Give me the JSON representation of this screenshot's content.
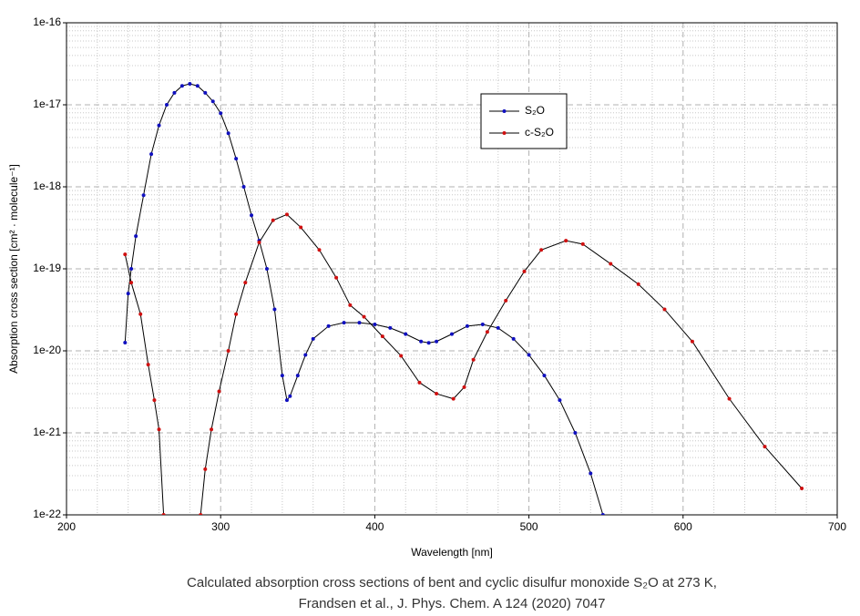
{
  "chart_data": {
    "type": "line",
    "title": "Calculated absorption cross sections of bent and cyclic disulfur monoxide S₂O at 273 K,",
    "subtitle": "Frandsen et al., J. Phys. Chem. A 124 (2020) 7047",
    "x_label": "Wavelength [nm]",
    "y_label": "Absorption cross section [cm² · molecule⁻¹]",
    "xlim": [
      200,
      700
    ],
    "xticks": [
      200,
      300,
      400,
      500,
      600,
      700
    ],
    "ylim": [
      1e-22,
      1e-16
    ],
    "yticks": [
      {
        "value": 1e-22,
        "label": "1e-22"
      },
      {
        "value": 1e-21,
        "label": "1e-21"
      },
      {
        "value": 1e-20,
        "label": "1e-20"
      },
      {
        "value": 1e-19,
        "label": "1e-19"
      },
      {
        "value": 1e-18,
        "label": "1e-18"
      },
      {
        "value": 1e-17,
        "label": "1e-17"
      },
      {
        "value": 1e-16,
        "label": "1e-16"
      }
    ],
    "log_y": true,
    "grid": true,
    "minor_grid": true,
    "line_color": "#000000",
    "series": [
      {
        "name": "S₂O",
        "color": "#1010c0",
        "x": [
          238,
          240,
          242,
          245,
          250,
          255,
          260,
          265,
          270,
          275,
          280,
          285,
          290,
          295,
          300,
          305,
          310,
          315,
          320,
          325,
          330,
          335,
          340,
          343,
          345,
          350,
          355,
          360,
          370,
          380,
          390,
          400,
          410,
          420,
          430,
          435,
          440,
          450,
          460,
          470,
          480,
          490,
          500,
          510,
          520,
          530,
          540,
          548
        ],
        "values": [
          1.26e-20,
          5e-20,
          1e-19,
          2.5e-19,
          7.9e-19,
          2.5e-18,
          5.6e-18,
          1e-17,
          1.4e-17,
          1.7e-17,
          1.8e-17,
          1.7e-17,
          1.4e-17,
          1.1e-17,
          7.9e-18,
          4.5e-18,
          2.2e-18,
          1e-18,
          4.5e-19,
          2.2e-19,
          1e-19,
          3.2e-20,
          5e-21,
          2.5e-21,
          2.8e-21,
          5e-21,
          8.9e-21,
          1.4e-20,
          2e-20,
          2.2e-20,
          2.2e-20,
          2.1e-20,
          1.9e-20,
          1.6e-20,
          1.3e-20,
          1.25e-20,
          1.3e-20,
          1.6e-20,
          2e-20,
          2.1e-20,
          1.9e-20,
          1.4e-20,
          8.9e-21,
          5e-21,
          2.5e-21,
          1e-21,
          3.2e-22,
          1e-22
        ]
      },
      {
        "name": "c-S₂O",
        "color": "#d01010",
        "x": [
          238,
          242,
          248,
          253,
          257,
          260,
          263,
          287,
          290,
          294,
          299,
          305,
          310,
          316,
          325,
          334,
          343,
          352,
          364,
          375,
          384,
          393,
          405,
          417,
          429,
          440,
          451,
          458,
          464,
          473,
          485,
          497,
          508,
          524,
          535,
          553,
          571,
          588,
          606,
          630,
          653,
          677
        ],
        "values": [
          1.5e-19,
          6.8e-20,
          2.8e-20,
          6.8e-21,
          2.5e-21,
          1.1e-21,
          1e-22,
          1e-22,
          3.6e-22,
          1.1e-21,
          3.2e-21,
          1e-20,
          2.8e-20,
          6.8e-20,
          2.1e-19,
          3.9e-19,
          4.6e-19,
          3.2e-19,
          1.7e-19,
          7.8e-20,
          3.6e-20,
          2.6e-20,
          1.5e-20,
          8.7e-21,
          4.1e-21,
          3e-21,
          2.6e-21,
          3.6e-21,
          7.8e-21,
          1.7e-20,
          4.1e-20,
          9.3e-20,
          1.7e-19,
          2.2e-19,
          2e-19,
          1.15e-19,
          6.5e-20,
          3.2e-20,
          1.3e-20,
          2.6e-21,
          6.8e-22,
          2.1e-22
        ]
      }
    ]
  }
}
